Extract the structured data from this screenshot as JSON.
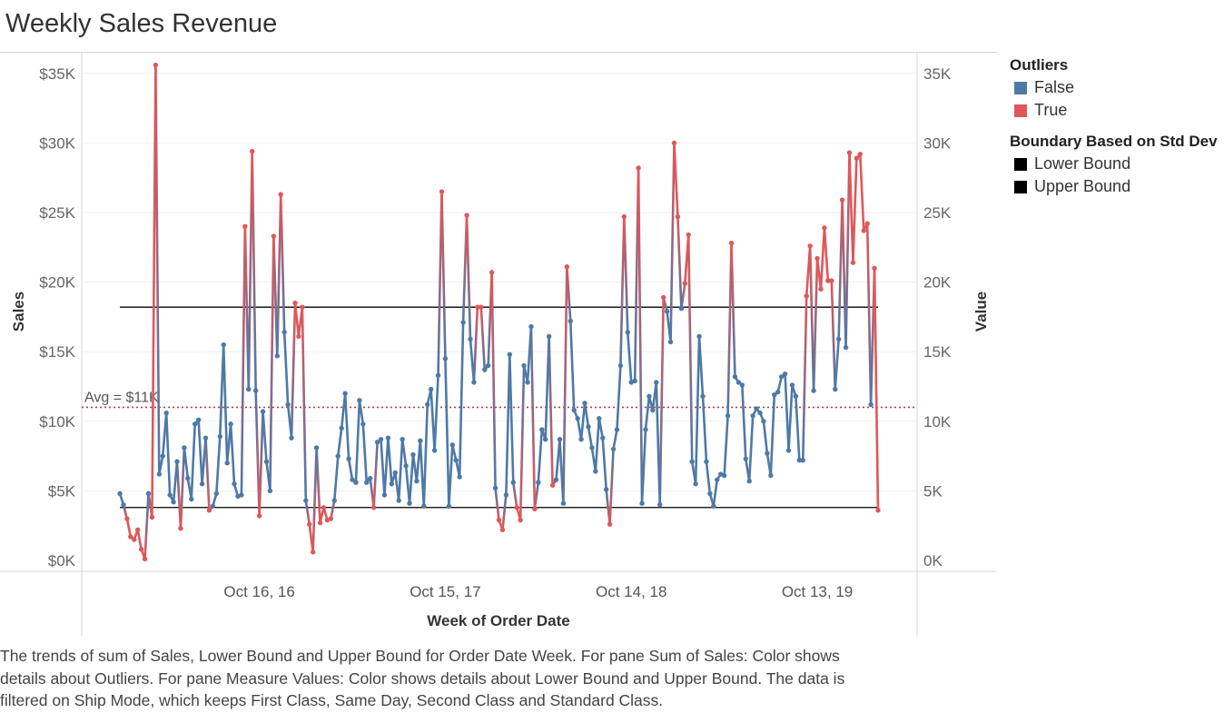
{
  "title": "Weekly Sales Revenue",
  "caption_lines": [
    "The trends of sum of Sales, Lower Bound and Upper Bound for Order Date Week.  For pane Sum of Sales:  Color shows",
    "details about Outliers.  For pane Measure Values:  Color shows details about Lower Bound and Upper Bound. The data is",
    "filtered on Ship Mode, which keeps First Class, Same Day, Second Class and Standard Class."
  ],
  "legend": {
    "outliers_title": "Outliers",
    "outliers_items": [
      {
        "label": "False",
        "color": "#4e79a7"
      },
      {
        "label": "True",
        "color": "#e15759"
      }
    ],
    "boundary_title": "Boundary Based on Std Dev",
    "boundary_items": [
      {
        "label": "Lower Bound",
        "color": "#000000"
      },
      {
        "label": "Upper Bound",
        "color": "#000000"
      }
    ]
  },
  "chart_data": {
    "type": "line",
    "title": "Weekly Sales Revenue",
    "xlabel": "Week of Order Date",
    "ylabel_left": "Sales",
    "ylabel_right": "Value",
    "x_tick_labels": [
      "Oct 16, 16",
      "Oct 15, 17",
      "Oct 14, 18",
      "Oct 13, 19"
    ],
    "x_tick_week_index": [
      39,
      91,
      143,
      195
    ],
    "y_ticks_left": [
      "$0K",
      "$5K",
      "$10K",
      "$15K",
      "$20K",
      "$25K",
      "$30K",
      "$35K"
    ],
    "y_ticks_right": [
      "0K",
      "5K",
      "10K",
      "15K",
      "20K",
      "25K",
      "30K",
      "35K"
    ],
    "ylim": [
      0,
      36000
    ],
    "tick_values": [
      0,
      5000,
      10000,
      15000,
      20000,
      25000,
      30000,
      35000
    ],
    "average": {
      "label": "Avg = $11K",
      "value": 11000
    },
    "upper_bound": 18200,
    "lower_bound": 3800,
    "colors": {
      "false": "#4e79a7",
      "true": "#e15759",
      "bound": "#000000",
      "avg": "#b0424a"
    },
    "series": [
      {
        "name": "SUM(Sales)",
        "values": [
          4800,
          4000,
          3000,
          1700,
          1500,
          2200,
          800,
          100,
          4800,
          3100,
          35600,
          6200,
          7500,
          10600,
          4700,
          4200,
          7100,
          2300,
          8100,
          5900,
          4400,
          9800,
          10100,
          5500,
          8800,
          3600,
          3900,
          4800,
          8900,
          15500,
          7000,
          9800,
          5500,
          4600,
          4700,
          24000,
          12300,
          29400,
          12200,
          3200,
          10700,
          7100,
          5000,
          23300,
          14700,
          26300,
          16400,
          11200,
          8800,
          18500,
          16100,
          18200,
          4300,
          2600,
          600,
          8100,
          2700,
          3800,
          2900,
          3000,
          4300,
          7500,
          9500,
          12000,
          7300,
          5800,
          5600,
          11500,
          9800,
          5600,
          5900,
          3800,
          8500,
          8700,
          4700,
          8800,
          5500,
          6300,
          4300,
          8700,
          6800,
          4100,
          7600,
          5700,
          8600,
          3900,
          11200,
          12300,
          7900,
          13300,
          26500,
          14500,
          3900,
          8300,
          7200,
          6000,
          17100,
          24800,
          15900,
          12800,
          18200,
          18200,
          13700,
          14000,
          20700,
          5200,
          2900,
          2200,
          4700,
          14800,
          5600,
          3800,
          2900,
          14000,
          12800,
          16800,
          3700,
          5600,
          9400,
          8700,
          16100,
          5400,
          5800,
          8700,
          4100,
          21100,
          17200,
          10800,
          10200,
          8700,
          11300,
          9600,
          8100,
          6400,
          10200,
          8800,
          5100,
          2600,
          8000,
          9400,
          14000,
          24700,
          16400,
          12800,
          12900,
          28200,
          4100,
          9400,
          11800,
          10800,
          12800,
          4000,
          18900,
          17900,
          15700,
          30000,
          24700,
          18100,
          19900,
          23400,
          7100,
          5500,
          16100,
          11800,
          7100,
          4800,
          3900,
          5800,
          6200,
          6100,
          10400,
          22800,
          13200,
          12800,
          12600,
          7300,
          5700,
          10400,
          10900,
          10600,
          10000,
          7700,
          6100,
          11900,
          12100,
          13200,
          13400,
          7900,
          12600,
          11800,
          7200,
          7200,
          19000,
          22600,
          12200,
          21700,
          19500,
          23900,
          20100,
          20100,
          12300,
          15900,
          25900,
          15300,
          29300,
          21400,
          28900,
          29200,
          23700,
          24200,
          11200,
          21000,
          3600
        ],
        "outlier": [
          0,
          0,
          1,
          1,
          1,
          1,
          1,
          1,
          0,
          1,
          1,
          0,
          0,
          0,
          0,
          0,
          0,
          1,
          0,
          0,
          0,
          0,
          0,
          0,
          0,
          1,
          0,
          0,
          0,
          0,
          0,
          0,
          0,
          0,
          0,
          1,
          0,
          1,
          0,
          1,
          0,
          0,
          0,
          1,
          0,
          1,
          0,
          0,
          0,
          1,
          1,
          1,
          0,
          1,
          1,
          0,
          1,
          1,
          1,
          1,
          0,
          0,
          0,
          0,
          0,
          0,
          0,
          0,
          0,
          0,
          0,
          1,
          0,
          0,
          0,
          0,
          0,
          0,
          0,
          0,
          0,
          0,
          0,
          0,
          0,
          0,
          0,
          0,
          0,
          0,
          1,
          0,
          0,
          0,
          0,
          0,
          0,
          1,
          0,
          0,
          1,
          1,
          0,
          0,
          1,
          0,
          1,
          1,
          0,
          0,
          0,
          1,
          1,
          0,
          0,
          0,
          1,
          0,
          0,
          0,
          0,
          1,
          0,
          0,
          0,
          1,
          0,
          0,
          0,
          0,
          0,
          0,
          0,
          0,
          0,
          0,
          0,
          1,
          0,
          0,
          0,
          1,
          0,
          0,
          0,
          1,
          0,
          0,
          0,
          0,
          0,
          0,
          1,
          0,
          0,
          1,
          1,
          0,
          1,
          1,
          0,
          0,
          0,
          0,
          0,
          0,
          0,
          0,
          0,
          0,
          0,
          1,
          0,
          0,
          0,
          0,
          0,
          0,
          0,
          0,
          0,
          0,
          0,
          0,
          0,
          0,
          0,
          0,
          0,
          0,
          0,
          0,
          1,
          1,
          0,
          1,
          1,
          1,
          1,
          1,
          0,
          0,
          1,
          0,
          1,
          1,
          1,
          1,
          1,
          1,
          0,
          1,
          1
        ]
      }
    ]
  }
}
